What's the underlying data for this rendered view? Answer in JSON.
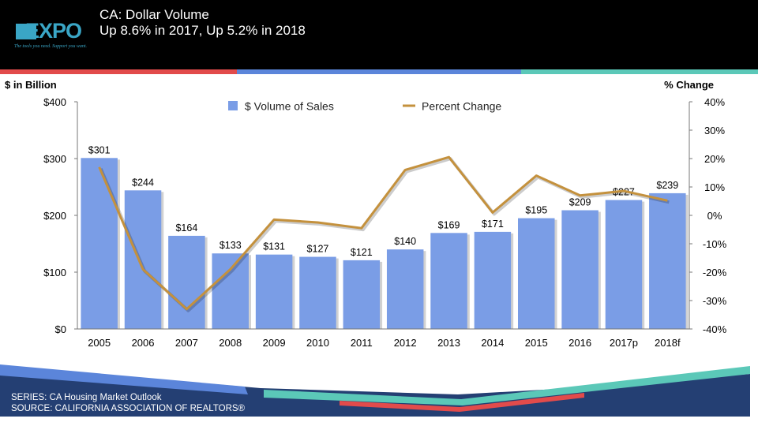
{
  "header": {
    "logo_text": "EXPO",
    "logo_tagline": "The tools you need. Support you want.",
    "title_line1": "CA: Dollar Volume",
    "title_line2": "Up 8.6% in 2017, Up 5.2% in 2018"
  },
  "footer": {
    "series": "SERIES: CA Housing Market Outlook",
    "source": "SOURCE:  CALIFORNIA ASSOCIATION OF REALTORS®"
  },
  "colors": {
    "bar": "#7a9de6",
    "line": "#c4913d",
    "stripe_red": "#e24b4b",
    "stripe_blue": "#5b85da",
    "stripe_teal": "#5bc8b8",
    "footer_bg": "#243f73"
  },
  "chart_data": {
    "type": "bar",
    "categories": [
      "2005",
      "2006",
      "2007",
      "2008",
      "2009",
      "2010",
      "2011",
      "2012",
      "2013",
      "2014",
      "2015",
      "2016",
      "2017p",
      "2018f"
    ],
    "ylabel": "$ in Billion",
    "y2label": "% Change",
    "ylim": [
      0,
      400
    ],
    "y2lim": [
      -40,
      40
    ],
    "yticks": [
      "$0",
      "$100",
      "$200",
      "$300",
      "$400"
    ],
    "y2ticks": [
      "-40%",
      "-30%",
      "-20%",
      "-10%",
      "0%",
      "10%",
      "20%",
      "30%",
      "40%"
    ],
    "legend_position": "top",
    "series": [
      {
        "name": "$ Volume of Sales",
        "type": "bar",
        "values": [
          301,
          244,
          164,
          133,
          131,
          127,
          121,
          140,
          169,
          171,
          195,
          209,
          227,
          239
        ],
        "labels": [
          "$301",
          "$244",
          "$164",
          "$133",
          "$131",
          "$127",
          "$121",
          "$140",
          "$169",
          "$171",
          "$195",
          "$209",
          "$227",
          "$239"
        ]
      },
      {
        "name": "Percent Change",
        "type": "line",
        "axis": "right",
        "values": [
          17,
          -19,
          -33,
          -19,
          -1.5,
          -2.5,
          -4.5,
          16,
          20.5,
          1,
          14,
          7,
          8.6,
          5.2
        ]
      }
    ]
  }
}
